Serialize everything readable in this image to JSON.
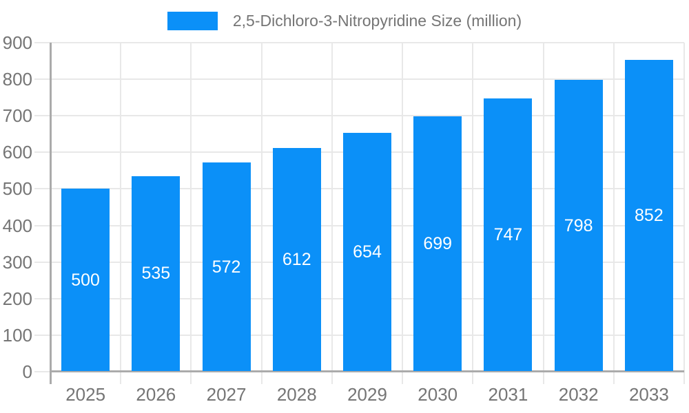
{
  "chart_data": {
    "type": "bar",
    "title": "",
    "series_label": "2,5-Dichloro-3-Nitropyridine Size (million)",
    "categories": [
      "2025",
      "2026",
      "2027",
      "2028",
      "2029",
      "2030",
      "2031",
      "2032",
      "2033"
    ],
    "values": [
      500,
      535,
      572,
      612,
      654,
      699,
      747,
      798,
      852
    ],
    "xlabel": "",
    "ylabel": "",
    "ylim": [
      0,
      900
    ],
    "ytick_interval": 100,
    "yticks": [
      0,
      100,
      200,
      300,
      400,
      500,
      600,
      700,
      800,
      900
    ],
    "grid": true,
    "legend_position": "top",
    "value_labels_position": "center-inside"
  },
  "colors": {
    "bar": "#0b90f8",
    "grid": "#e8e8e8",
    "axis": "#ababab",
    "tick_text": "#757575",
    "bar_label_text": "#ffffff",
    "legend_text": "#757575",
    "background": "#ffffff"
  }
}
